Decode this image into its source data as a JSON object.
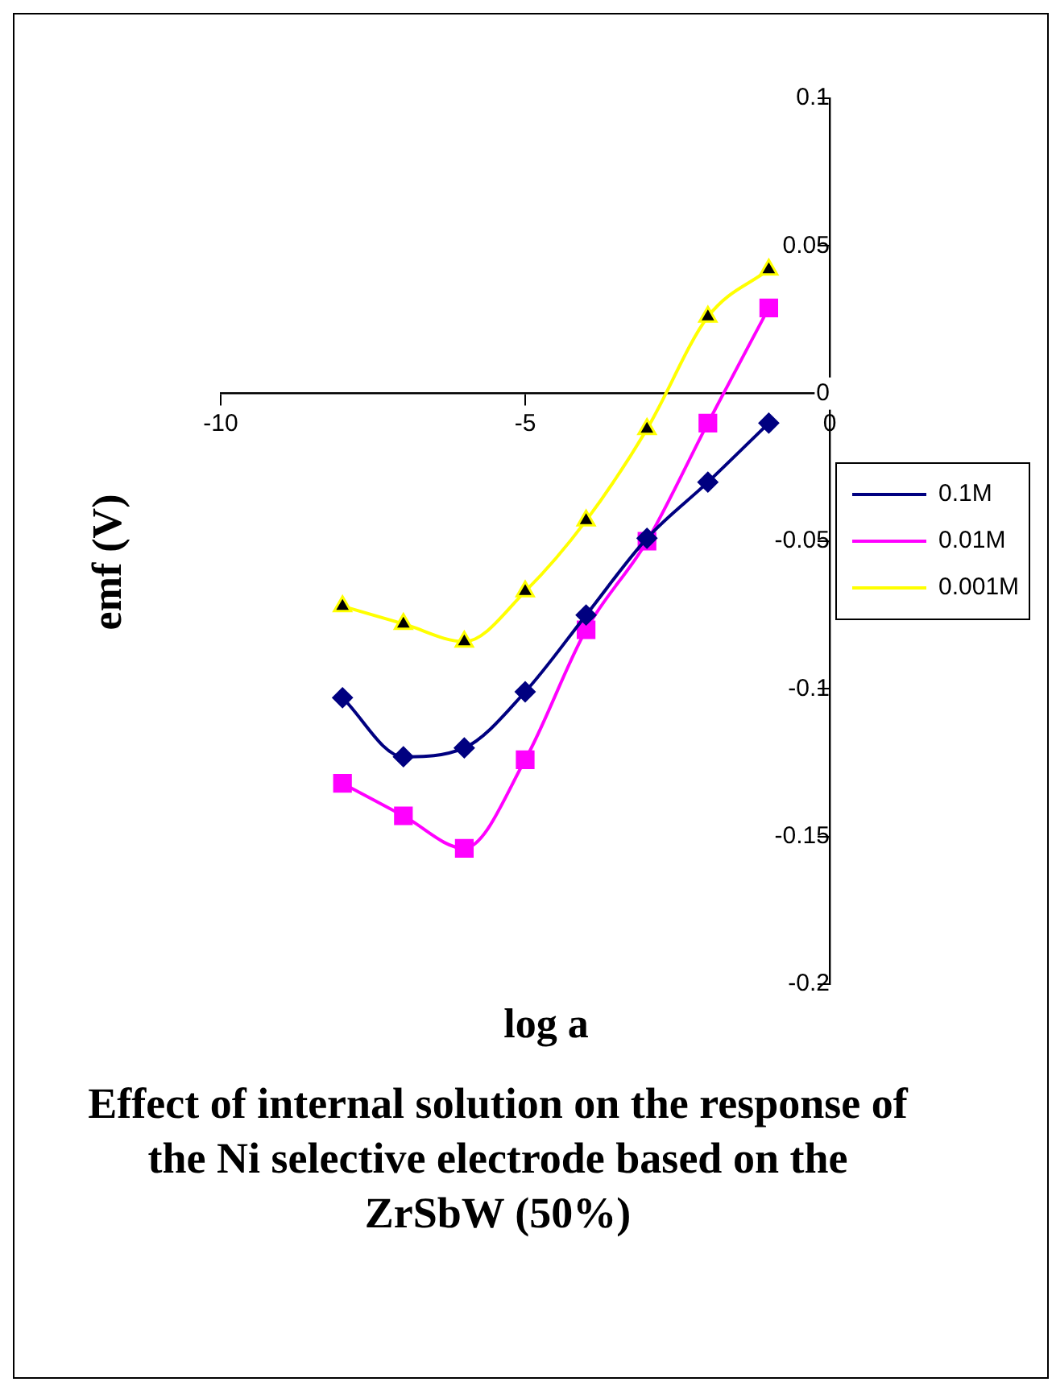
{
  "chart_data": {
    "type": "line",
    "title": "Effect of internal solution on the response of the Ni selective electrode based on the ZrSbW (50%)",
    "xlabel": "log a",
    "ylabel": "emf (V)",
    "x": [
      -8,
      -7,
      -6,
      -5,
      -4,
      -3,
      -2,
      -1
    ],
    "series": [
      {
        "name": "0.1M",
        "color": "#000080",
        "marker": "diamond",
        "values": [
          -0.103,
          -0.123,
          -0.12,
          -0.101,
          -0.075,
          -0.049,
          -0.03,
          -0.01
        ]
      },
      {
        "name": "0.01M",
        "color": "#ff00ff",
        "marker": "square",
        "values": [
          -0.132,
          -0.143,
          -0.154,
          -0.124,
          -0.08,
          -0.05,
          -0.01,
          0.029
        ]
      },
      {
        "name": "0.001M",
        "color": "#ffff00",
        "marker": "triangle",
        "values": [
          -0.072,
          -0.078,
          -0.084,
          -0.067,
          -0.043,
          -0.012,
          0.026,
          0.042
        ]
      }
    ],
    "xlim": [
      -10,
      0
    ],
    "xticks": [
      -10,
      -5,
      0
    ],
    "ylim": [
      -0.2,
      0.1
    ],
    "yticks": [
      -0.2,
      -0.15,
      -0.1,
      -0.05,
      0,
      0.05,
      0.1
    ],
    "grid": false,
    "legend": "right",
    "line_style": "solid"
  }
}
